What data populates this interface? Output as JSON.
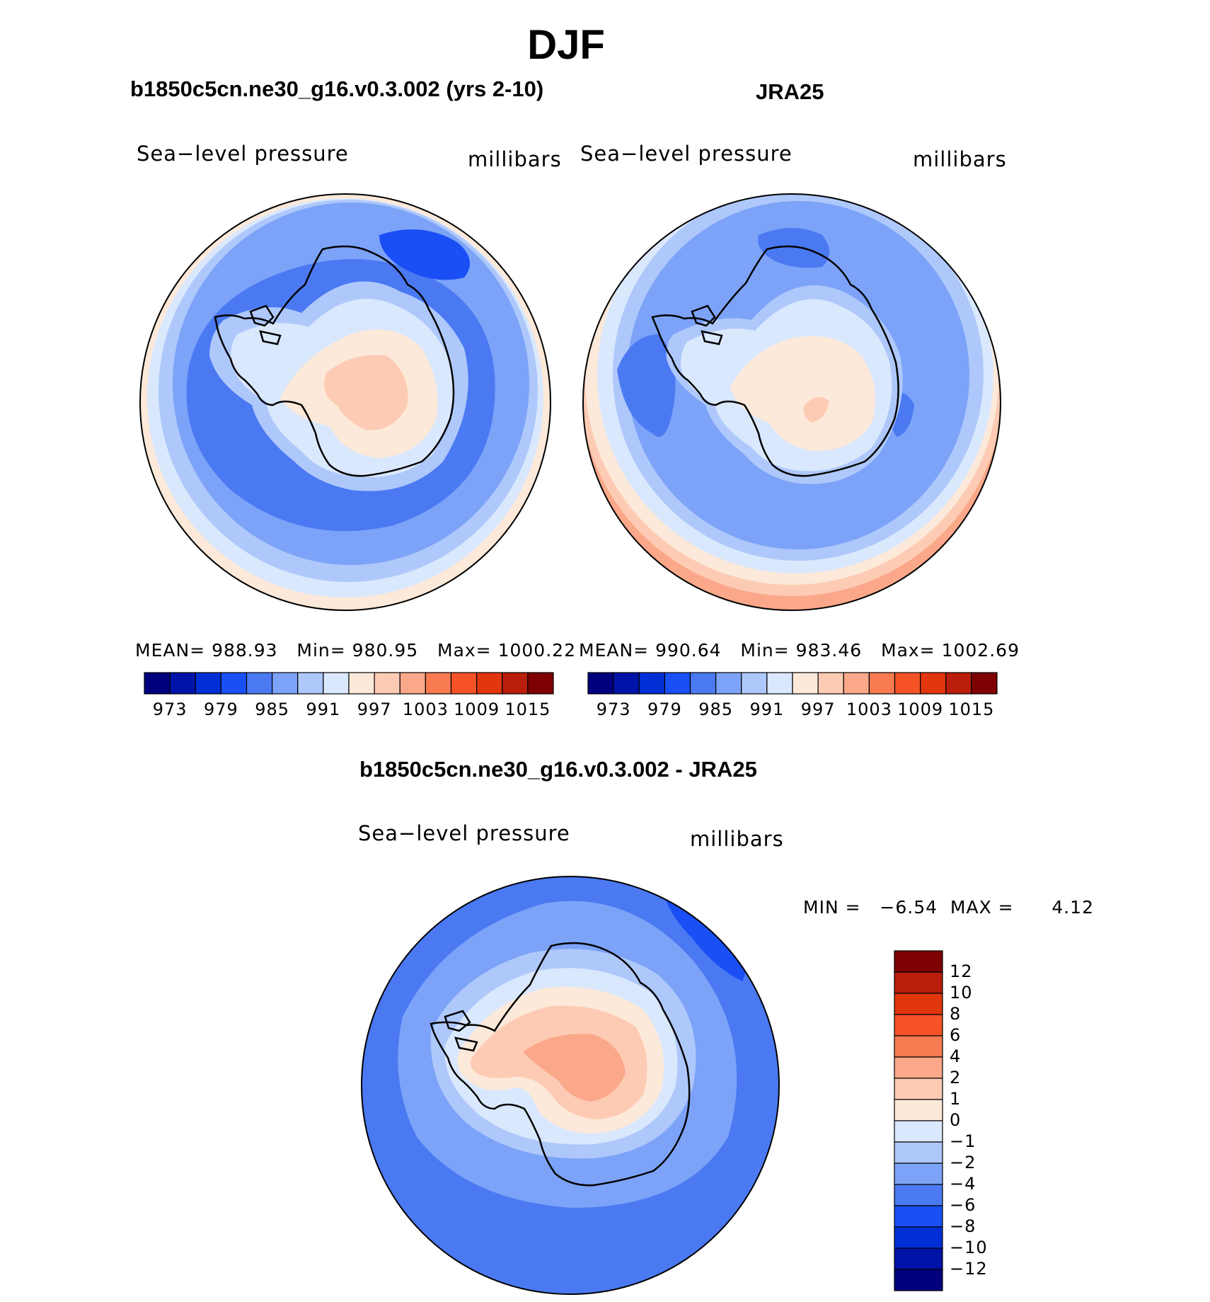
{
  "season": "DJF",
  "panels": [
    {
      "title": "b1850c5cn.ne30_g16.v0.3.002 (yrs 2-10)",
      "variable": "Sea−level pressure",
      "units": "millibars",
      "stats": {
        "mean_label": "MEAN=",
        "mean": "988.93",
        "min_label": "Min=",
        "min": "980.95",
        "max_label": "Max=",
        "max": "1000.22"
      }
    },
    {
      "title": "JRA25",
      "variable": "Sea−level pressure",
      "units": "millibars",
      "stats": {
        "mean_label": "MEAN=",
        "mean": "990.64",
        "min_label": "Min=",
        "min": "983.46",
        "max_label": "Max=",
        "max": "1002.69"
      }
    },
    {
      "title": "b1850c5cn.ne30_g16.v0.3.002 - JRA25",
      "variable": "Sea−level pressure",
      "units": "millibars",
      "stats": {
        "min_label": "MIN =",
        "min": "−6.54",
        "max_label": "MAX =",
        "max": "4.12"
      }
    }
  ],
  "colorbar_abs": {
    "ticks": [
      "973",
      "979",
      "985",
      "991",
      "997",
      "1003",
      "1009",
      "1015"
    ],
    "colors": [
      "#00007f",
      "#0013a8",
      "#0030d5",
      "#1a4ff5",
      "#4a79f2",
      "#7ca3f8",
      "#aec8fb",
      "#dae8fd",
      "#fde9d9",
      "#fdcbb4",
      "#fba88a",
      "#f87b52",
      "#f55326",
      "#e1360e",
      "#b91d0b",
      "#7f0000"
    ]
  },
  "colorbar_diff": {
    "labels": [
      "12",
      "10",
      "8",
      "6",
      "4",
      "2",
      "1",
      "0",
      "−1",
      "−2",
      "−4",
      "−6",
      "−8",
      "−10",
      "−12"
    ],
    "colors": [
      "#7f0000",
      "#b91d0b",
      "#e1360e",
      "#f55326",
      "#f87b52",
      "#fba88a",
      "#fdcbb4",
      "#fde9d9",
      "#dae8fd",
      "#aec8fb",
      "#7ca3f8",
      "#4a79f2",
      "#1a4ff5",
      "#0030d5",
      "#0013a8",
      "#00007f"
    ]
  }
}
